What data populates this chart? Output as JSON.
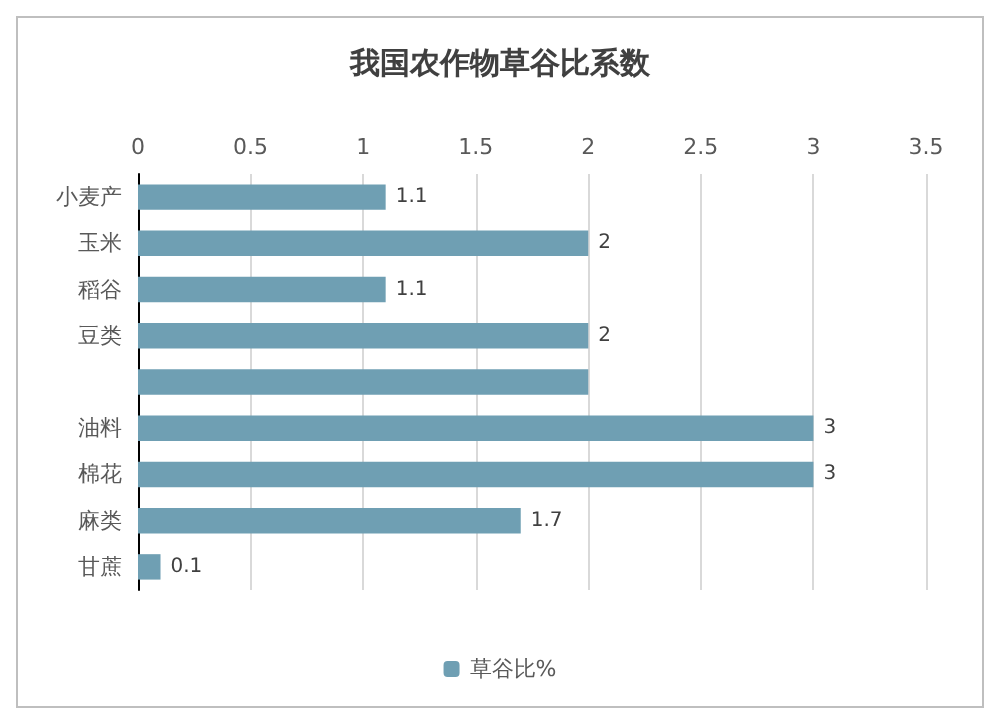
{
  "chart_data": {
    "type": "bar",
    "orientation": "horizontal",
    "title": "我国农作物草谷比系数",
    "categories": [
      "小麦产",
      "玉米",
      "稻谷",
      "豆类",
      null,
      "油料",
      "棉花",
      "麻类",
      "甘蔗"
    ],
    "series": [
      {
        "name": "草谷比%",
        "color": "#6f9fb3",
        "values": [
          1.1,
          2,
          1.1,
          2,
          2,
          3,
          3,
          1.7,
          0.1
        ],
        "value_labels": [
          "1.1",
          "2",
          "1.1",
          "2",
          null,
          "3",
          "3",
          "1.7",
          "0.1"
        ]
      }
    ],
    "xlim": [
      0,
      3.5
    ],
    "xticks": [
      0,
      0.5,
      1,
      1.5,
      2,
      2.5,
      3,
      3.5
    ],
    "grid": "x",
    "legend": "bottom"
  }
}
